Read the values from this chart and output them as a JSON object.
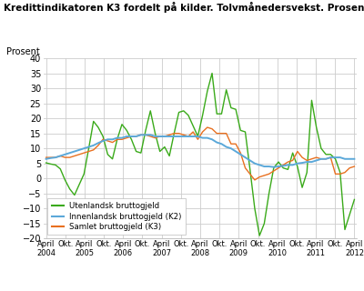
{
  "title": "Kredittindikatoren K3 fordelt på kilder. Tolvmånedersvekst. Prosent",
  "ylabel": "Prosent",
  "ylim": [
    -20,
    40
  ],
  "yticks": [
    -20,
    -15,
    -10,
    -5,
    0,
    5,
    10,
    15,
    20,
    25,
    30,
    35,
    40
  ],
  "color_green": "#3aaa1a",
  "color_blue": "#5ba8d9",
  "color_orange": "#e87020",
  "legend_green": "Utenlandsk bruttogjeld",
  "legend_blue": "Innenlandsk bruttogjeld (K2)",
  "legend_orange": "Samlet bruttogjeld (K3)",
  "background_color": "#ffffff",
  "grid_color": "#cccccc",
  "green_y": [
    5.2,
    4.8,
    4.5,
    3.2,
    -0.5,
    -3.5,
    -5.5,
    -2.0,
    1.5,
    10.0,
    19.0,
    17.0,
    14.0,
    8.0,
    6.5,
    13.0,
    18.0,
    16.0,
    13.0,
    9.0,
    8.5,
    16.0,
    22.5,
    15.0,
    9.0,
    10.5,
    7.5,
    15.0,
    22.0,
    22.5,
    21.0,
    17.5,
    14.0,
    21.0,
    29.0,
    35.0,
    21.5,
    21.5,
    29.5,
    23.5,
    23.0,
    16.0,
    15.5,
    3.0,
    -10.0,
    -19.0,
    -15.0,
    -5.0,
    3.5,
    5.5,
    3.5,
    3.0,
    8.5,
    4.0,
    -3.0,
    2.0,
    26.0,
    17.0,
    10.0,
    8.0,
    8.0,
    6.5,
    2.0,
    -17.0,
    -12.0,
    -7.0
  ],
  "blue_y": [
    6.5,
    6.8,
    7.0,
    7.5,
    8.0,
    8.5,
    9.0,
    9.5,
    10.0,
    10.5,
    11.0,
    11.8,
    12.5,
    13.0,
    13.0,
    13.5,
    13.5,
    14.0,
    14.0,
    14.0,
    14.5,
    14.5,
    14.5,
    14.0,
    14.0,
    14.0,
    14.0,
    14.0,
    14.0,
    14.0,
    14.0,
    14.0,
    14.0,
    13.5,
    13.5,
    13.0,
    12.0,
    11.5,
    10.5,
    10.0,
    9.0,
    8.0,
    7.0,
    6.0,
    5.0,
    4.5,
    4.0,
    4.0,
    3.8,
    4.0,
    4.2,
    4.5,
    4.5,
    5.0,
    5.2,
    5.5,
    5.5,
    6.0,
    6.5,
    6.5,
    7.0,
    7.0,
    7.0,
    6.5,
    6.5,
    6.5
  ],
  "orange_y": [
    7.0,
    7.0,
    7.0,
    7.5,
    7.0,
    7.0,
    7.5,
    8.0,
    8.5,
    9.0,
    9.5,
    11.0,
    13.0,
    12.5,
    12.0,
    13.0,
    13.0,
    13.5,
    14.0,
    14.0,
    14.5,
    14.5,
    14.0,
    13.5,
    14.0,
    14.0,
    14.5,
    15.0,
    15.0,
    14.5,
    14.0,
    15.5,
    13.0,
    15.5,
    17.0,
    16.5,
    15.0,
    15.0,
    15.0,
    11.5,
    11.5,
    8.5,
    3.5,
    1.5,
    -0.5,
    0.5,
    1.0,
    1.5,
    2.5,
    3.5,
    4.5,
    5.5,
    6.0,
    9.0,
    7.0,
    6.0,
    6.5,
    7.0,
    6.5,
    6.5,
    7.0,
    1.5,
    1.5,
    2.0,
    3.5,
    4.0
  ],
  "n_months": 66
}
